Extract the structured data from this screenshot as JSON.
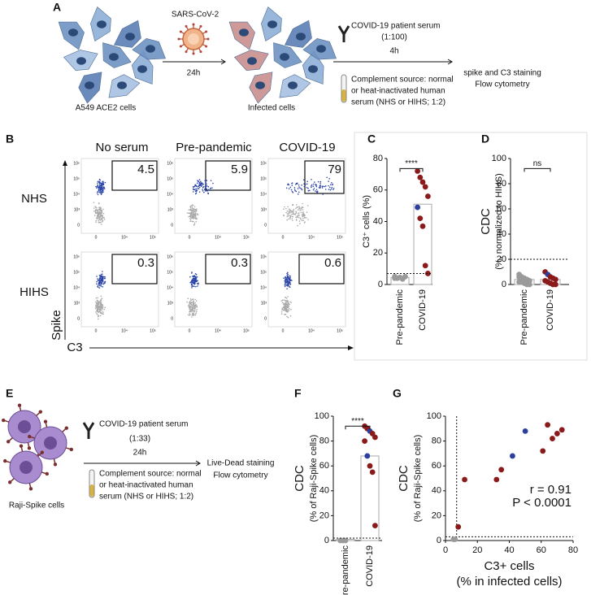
{
  "panel_a": {
    "letter": "A",
    "virus": "SARS-CoV-2",
    "time_infection": "24h",
    "cells": "A549 ACE2 cells",
    "infected": "Infected cells",
    "serum": "COVID-19 patient serum",
    "dilution": "(1:100)",
    "time_serum": "4h",
    "complement": [
      "Complement source: normal",
      "or heat-inactivated human",
      "serum (NHS or HIHS; 1:2)"
    ],
    "readout": [
      "spike and C3 staining",
      "Flow cytometry"
    ]
  },
  "panel_b": {
    "letter": "B",
    "columns": [
      "No serum",
      "Pre-pandemic",
      "COVID-19"
    ],
    "rows": [
      "NHS",
      "HIHS"
    ],
    "y_axis": "Spike",
    "x_axis": "C3",
    "gate_values": [
      [
        4.5,
        5.9,
        79
      ],
      [
        0.3,
        0.3,
        0.6
      ]
    ],
    "yticks": [
      "10⁶",
      "10⁵",
      "10⁴",
      "10³",
      "0"
    ],
    "xticks": [
      "0",
      "10⁴",
      "10⁵"
    ]
  },
  "panel_e": {
    "letter": "E",
    "serum": "COVID-19 patient serum",
    "dilution": "(1:33)",
    "time_serum": "24h",
    "cells": "Raji-Spike cells",
    "complement": [
      "Complement source: normal",
      "or heat-inactivated human",
      "serum (NHS or HIHS; 1:2)"
    ],
    "readout": [
      "Live-Dead staining",
      "Flow cytometry"
    ]
  },
  "chart_data": [
    {
      "panel": "C",
      "type": "dotbar",
      "ylabel": [
        "C3⁺ cells (%)"
      ],
      "categories": [
        "Pre-pandemic",
        "COVID-19"
      ],
      "values": [
        4.5,
        51
      ],
      "ylim": [
        0,
        80
      ],
      "yticks": [
        0,
        20,
        40,
        60,
        80
      ],
      "threshold": 7,
      "significance": "****",
      "points": [
        [
          5,
          4,
          4.5,
          3.5,
          5,
          4
        ],
        [
          72,
          68,
          65,
          62,
          56,
          49,
          42,
          37,
          12,
          7
        ]
      ],
      "point_colors": [
        [
          "#9a9a9a",
          "#9a9a9a",
          "#9a9a9a",
          "#9a9a9a",
          "#9a9a9a",
          "#9a9a9a"
        ],
        [
          "#8b1a1a",
          "#8b1a1a",
          "#8b1a1a",
          "#8b1a1a",
          "#8b1a1a",
          "#2b3f9e",
          "#8b1a1a",
          "#8b1a1a",
          "#8b1a1a",
          "#8b1a1a"
        ]
      ]
    },
    {
      "panel": "D",
      "type": "dotbar",
      "ylabel": [
        "CDC",
        "(%, normalized to HIHS)"
      ],
      "categories": [
        "Pre-pandemic",
        "COVID-19"
      ],
      "values": [
        4,
        4
      ],
      "ylim": [
        0,
        100
      ],
      "yticks": [
        0,
        20,
        40,
        60,
        80,
        100
      ],
      "threshold": 20,
      "significance": "ns",
      "points": [
        [
          8,
          6,
          5,
          4,
          3,
          2,
          2,
          1,
          0,
          0,
          6,
          3
        ],
        [
          10,
          8,
          6,
          5,
          4,
          3,
          2,
          1,
          0,
          0
        ]
      ],
      "point_colors": [
        [
          "#9a9a9a",
          "#9a9a9a",
          "#9a9a9a",
          "#9a9a9a",
          "#9a9a9a",
          "#9a9a9a",
          "#9a9a9a",
          "#9a9a9a",
          "#9a9a9a",
          "#9a9a9a",
          "#9a9a9a",
          "#9a9a9a"
        ],
        [
          "#8b1a1a",
          "#2b3f9e",
          "#8b1a1a",
          "#8b1a1a",
          "#8b1a1a",
          "#8b1a1a",
          "#8b1a1a",
          "#8b1a1a",
          "#8b1a1a",
          "#8b1a1a"
        ]
      ]
    },
    {
      "panel": "F",
      "type": "dotbar",
      "ylabel": [
        "CDC",
        "(% of Raji-Spike cells)"
      ],
      "categories": [
        "Pre-pandemic",
        "COVID-19"
      ],
      "values": [
        1,
        68
      ],
      "ylim": [
        0,
        100
      ],
      "yticks": [
        0,
        20,
        40,
        60,
        80,
        100
      ],
      "threshold": 2,
      "significance": "****",
      "points": [
        [
          0,
          0,
          0
        ],
        [
          92,
          90,
          88,
          86,
          83,
          80,
          68,
          60,
          55,
          12
        ]
      ],
      "point_colors": [
        [
          "#9a9a9a",
          "#9a9a9a",
          "#9a9a9a"
        ],
        [
          "#8b1a1a",
          "#8b1a1a",
          "#2b3f9e",
          "#8b1a1a",
          "#8b1a1a",
          "#8b1a1a",
          "#2b3f9e",
          "#8b1a1a",
          "#8b1a1a",
          "#8b1a1a"
        ]
      ]
    },
    {
      "panel": "G",
      "type": "scatter",
      "ylabel": [
        "CDC",
        "(% of Raji-Spike cells)"
      ],
      "xlabel": [
        "C3+ cells",
        "(% in infected cells)"
      ],
      "x": [
        5,
        6,
        8,
        12,
        32,
        35,
        42,
        50,
        61,
        64,
        67,
        70,
        73
      ],
      "values": [
        1,
        1,
        11,
        49,
        49,
        57,
        68,
        88,
        72,
        93,
        82,
        86,
        89
      ],
      "point_colors": [
        "#9a9a9a",
        "#9a9a9a",
        "#8b1a1a",
        "#8b1a1a",
        "#8b1a1a",
        "#8b1a1a",
        "#2b3f9e",
        "#2b3f9e",
        "#8b1a1a",
        "#8b1a1a",
        "#8b1a1a",
        "#8b1a1a",
        "#8b1a1a"
      ],
      "xlim": [
        0,
        80
      ],
      "xticks": [
        0,
        20,
        40,
        60,
        80
      ],
      "ylim": [
        0,
        100
      ],
      "yticks": [
        0,
        20,
        40,
        60,
        80,
        100
      ],
      "vline": 7,
      "hline": 3,
      "annotations": [
        "r = 0.91",
        "P < 0.0001"
      ]
    }
  ]
}
